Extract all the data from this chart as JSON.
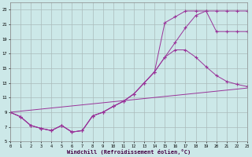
{
  "xlabel": "Windchill (Refroidissement éolien,°C)",
  "bg_color": "#cce8e8",
  "line_color": "#993399",
  "grid_color": "#aabbbb",
  "xlim": [
    0,
    23
  ],
  "ylim": [
    5,
    24
  ],
  "yticks": [
    5,
    7,
    9,
    11,
    13,
    15,
    17,
    19,
    21,
    23
  ],
  "xticks": [
    0,
    1,
    2,
    3,
    4,
    5,
    6,
    7,
    8,
    9,
    10,
    11,
    12,
    13,
    14,
    15,
    16,
    17,
    18,
    19,
    20,
    21,
    22,
    23
  ],
  "curve1_x": [
    0,
    1,
    2,
    3,
    4,
    5,
    6,
    7,
    8,
    9,
    10,
    11,
    12,
    13,
    14,
    15,
    16,
    17,
    18,
    19,
    20,
    21,
    22,
    23
  ],
  "curve1_y": [
    9.0,
    8.4,
    7.2,
    6.8,
    6.5,
    7.2,
    6.3,
    6.5,
    8.5,
    9.0,
    9.8,
    10.5,
    11.5,
    13.0,
    14.5,
    16.5,
    18.5,
    20.5,
    22.2,
    22.8,
    22.8,
    22.8,
    22.8,
    22.8
  ],
  "curve2_x": [
    0,
    1,
    2,
    3,
    4,
    5,
    6,
    7,
    8,
    9,
    10,
    11,
    12,
    13,
    14,
    15,
    16,
    17,
    18,
    19,
    20,
    21,
    22,
    23
  ],
  "curve2_y": [
    9.0,
    8.4,
    7.2,
    6.8,
    6.5,
    7.2,
    6.3,
    6.5,
    8.5,
    9.0,
    9.8,
    10.5,
    11.5,
    13.0,
    14.5,
    21.2,
    22.0,
    22.8,
    22.8,
    22.8,
    20.0,
    20.0,
    20.0,
    20.0
  ],
  "curve3_x": [
    0,
    1,
    2,
    3,
    4,
    5,
    6,
    7,
    8,
    9,
    10,
    11,
    12,
    13,
    14,
    15,
    16,
    17,
    18,
    19,
    20,
    21,
    22,
    23
  ],
  "curve3_y": [
    9.0,
    8.4,
    7.2,
    6.8,
    6.5,
    7.2,
    6.3,
    6.5,
    8.5,
    9.0,
    9.8,
    10.5,
    11.5,
    13.0,
    14.5,
    16.5,
    17.5,
    17.5,
    16.5,
    15.2,
    14.0,
    13.2,
    12.8,
    12.5
  ],
  "baseline_x": [
    0,
    23
  ],
  "baseline_y": [
    9.0,
    12.3
  ]
}
